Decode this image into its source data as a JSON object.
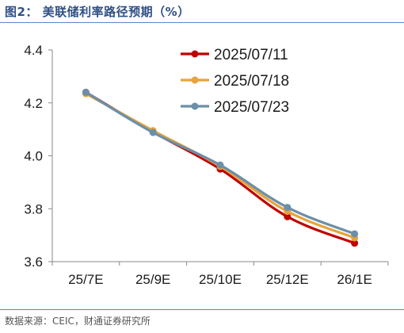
{
  "header": {
    "title": "图2：  美联储利率路径预期（%）"
  },
  "footer": {
    "source": "数据来源：CEIC，财通证券研究所"
  },
  "chart_data": {
    "type": "line",
    "title": "",
    "xlabel": "",
    "ylabel": "",
    "categories": [
      "25/7E",
      "25/9E",
      "25/10E",
      "25/12E",
      "26/1E"
    ],
    "ylim": [
      3.6,
      4.4
    ],
    "yticks": [
      "4.4",
      "4.2",
      "4.0",
      "3.8",
      "3.6"
    ],
    "grid": false,
    "legend_position": "top-right",
    "series": [
      {
        "name": "2025/07/11",
        "color": "#c00000",
        "values": [
          4.24,
          4.09,
          3.95,
          3.77,
          3.67
        ]
      },
      {
        "name": "2025/07/18",
        "color": "#e8a33b",
        "values": [
          4.235,
          4.095,
          3.96,
          3.79,
          3.69
        ]
      },
      {
        "name": "2025/07/23",
        "color": "#6b8fa8",
        "values": [
          4.24,
          4.088,
          3.965,
          3.805,
          3.705
        ]
      }
    ]
  }
}
